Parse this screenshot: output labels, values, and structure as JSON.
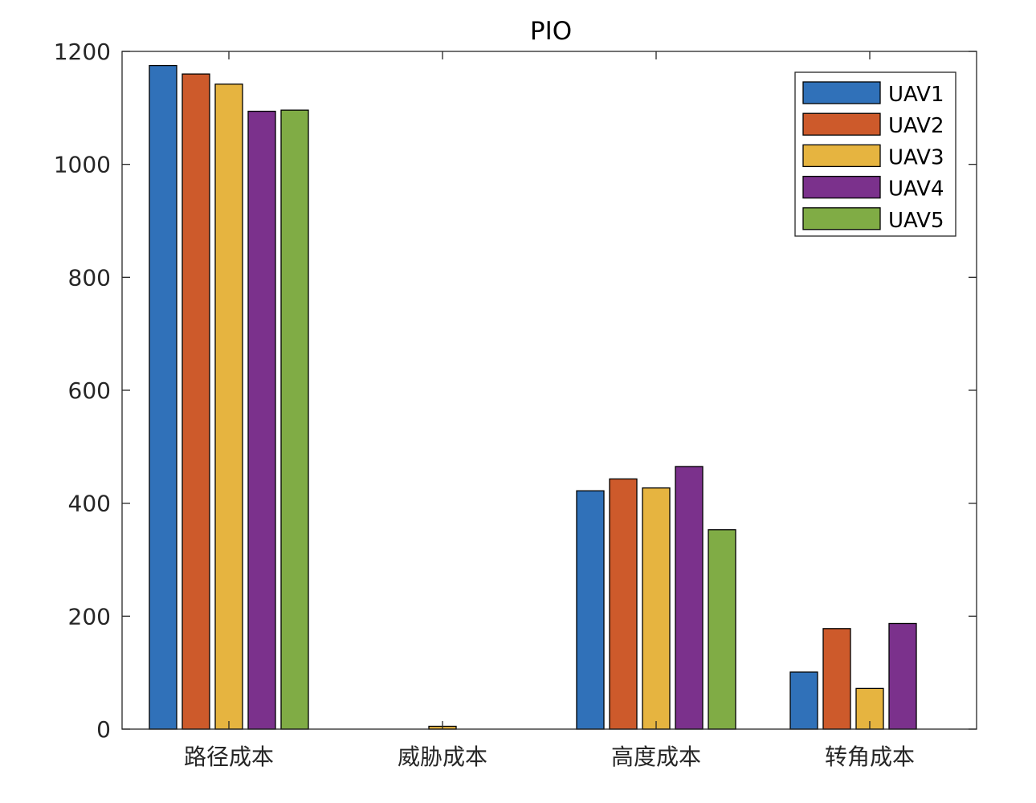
{
  "chart_data": {
    "type": "bar",
    "title": "PIO",
    "xlabel": "",
    "ylabel": "",
    "categories": [
      "路径成本",
      "威胁成本",
      "高度成本",
      "转角成本"
    ],
    "ylim": [
      0,
      1200
    ],
    "yticks": [
      0,
      200,
      400,
      600,
      800,
      1000,
      1200
    ],
    "grid": false,
    "legend_position": "top-right",
    "series": [
      {
        "name": "UAV1",
        "color": "#3071b9",
        "values": [
          1175,
          0,
          422,
          101
        ]
      },
      {
        "name": "UAV2",
        "color": "#cd5a2b",
        "values": [
          1160,
          0,
          443,
          178
        ]
      },
      {
        "name": "UAV3",
        "color": "#e6b440",
        "values": [
          1142,
          5,
          427,
          72
        ]
      },
      {
        "name": "UAV4",
        "color": "#7b318c",
        "values": [
          1094,
          0,
          465,
          187
        ]
      },
      {
        "name": "UAV5",
        "color": "#80ac45",
        "values": [
          1096,
          0,
          353,
          0
        ]
      }
    ]
  }
}
